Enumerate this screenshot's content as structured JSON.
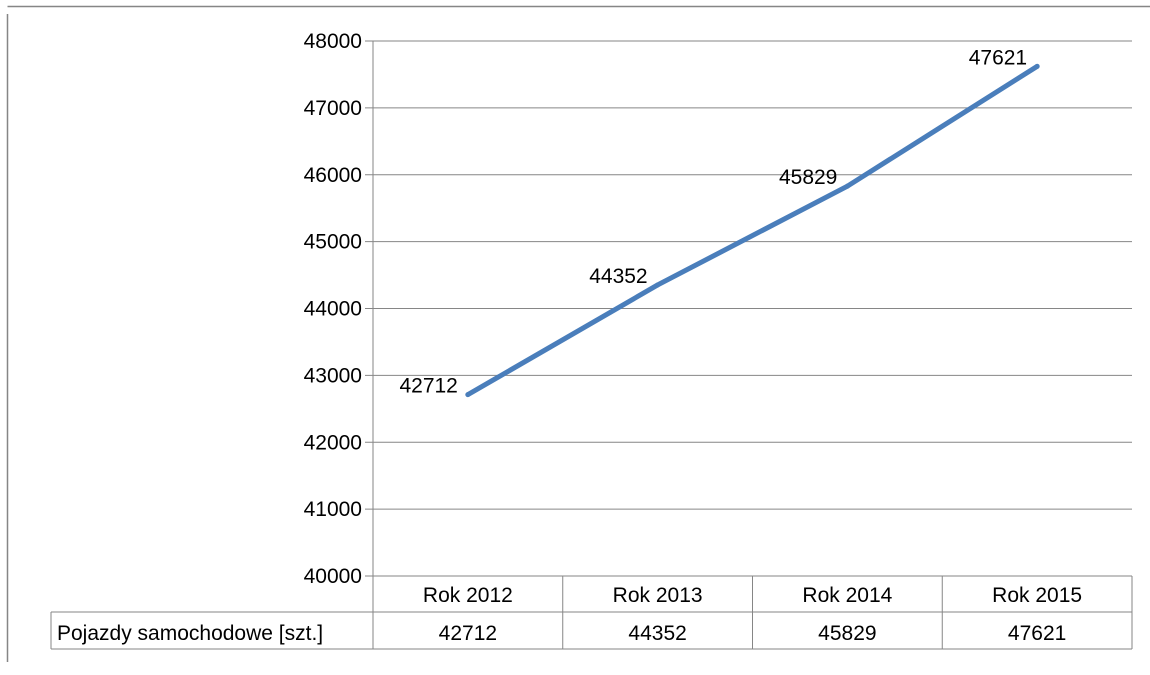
{
  "colors": {
    "line": "#4a7ebb",
    "grid": "#868686",
    "border": "#868686",
    "text": "#000000"
  },
  "chart_data": {
    "type": "line",
    "categories": [
      "Rok 2012",
      "Rok 2013",
      "Rok 2014",
      "Rok 2015"
    ],
    "series": [
      {
        "name": "Pojazdy samochodowe [szt.]",
        "values": [
          42712,
          44352,
          45829,
          47621
        ]
      }
    ],
    "y_ticks": [
      "40000",
      "41000",
      "42000",
      "43000",
      "44000",
      "45000",
      "46000",
      "47000",
      "48000"
    ],
    "data_labels": [
      "42712",
      "44352",
      "45829",
      "47621"
    ],
    "table": {
      "row_label": "Pojazdy samochodowe [szt.]",
      "values": [
        "42712",
        "44352",
        "45829",
        "47621"
      ]
    },
    "ylim": [
      40000,
      48000
    ],
    "grid": true,
    "legend": "data-table"
  }
}
